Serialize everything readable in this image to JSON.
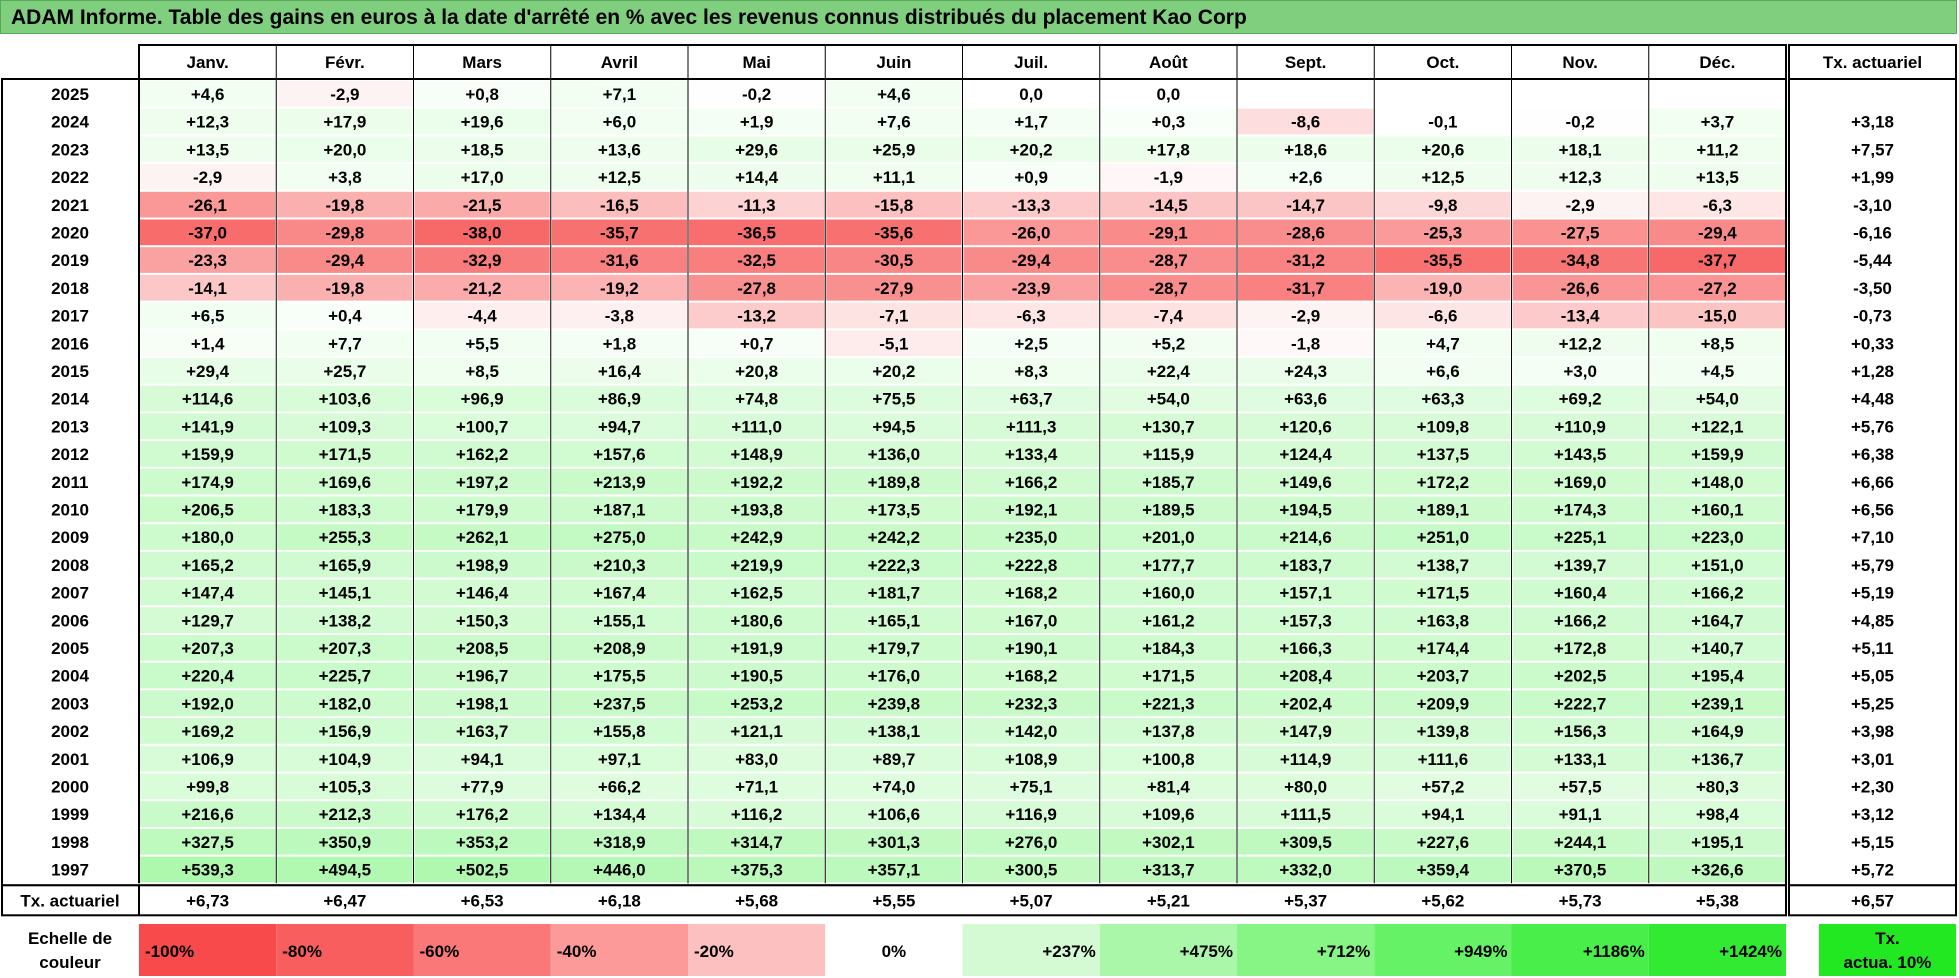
{
  "title": "ADAM Informe. Table des gains en euros à la date d'arrêté en % avec les revenus connus distribués du placement Kao Corp",
  "chart_data": {
    "type": "heatmap",
    "columns": [
      "Janv.",
      "Févr.",
      "Mars",
      "Avril",
      "Mai",
      "Juin",
      "Juil.",
      "Août",
      "Sept.",
      "Oct.",
      "Nov.",
      "Déc."
    ],
    "rate_header": "Tx. actuariel",
    "rows": [
      {
        "year": "2025",
        "values": [
          "+4,6",
          "-2,9",
          "+0,8",
          "+7,1",
          "-0,2",
          "+4,6",
          "0,0",
          "0,0",
          "",
          "",
          "",
          ""
        ],
        "rate": ""
      },
      {
        "year": "2024",
        "values": [
          "+12,3",
          "+17,9",
          "+19,6",
          "+6,0",
          "+1,9",
          "+7,6",
          "+1,7",
          "+0,3",
          "-8,6",
          "-0,1",
          "-0,2",
          "+3,7"
        ],
        "rate": "+3,18"
      },
      {
        "year": "2023",
        "values": [
          "+13,5",
          "+20,0",
          "+18,5",
          "+13,6",
          "+29,6",
          "+25,9",
          "+20,2",
          "+17,8",
          "+18,6",
          "+20,6",
          "+18,1",
          "+11,2"
        ],
        "rate": "+7,57"
      },
      {
        "year": "2022",
        "values": [
          "-2,9",
          "+3,8",
          "+17,0",
          "+12,5",
          "+14,4",
          "+11,1",
          "+0,9",
          "-1,9",
          "+2,6",
          "+12,5",
          "+12,3",
          "+13,5"
        ],
        "rate": "+1,99"
      },
      {
        "year": "2021",
        "values": [
          "-26,1",
          "-19,8",
          "-21,5",
          "-16,5",
          "-11,3",
          "-15,8",
          "-13,3",
          "-14,5",
          "-14,7",
          "-9,8",
          "-2,9",
          "-6,3"
        ],
        "rate": "-3,10"
      },
      {
        "year": "2020",
        "values": [
          "-37,0",
          "-29,8",
          "-38,0",
          "-35,7",
          "-36,5",
          "-35,6",
          "-26,0",
          "-29,1",
          "-28,6",
          "-25,3",
          "-27,5",
          "-29,4"
        ],
        "rate": "-6,16"
      },
      {
        "year": "2019",
        "values": [
          "-23,3",
          "-29,4",
          "-32,9",
          "-31,6",
          "-32,5",
          "-30,5",
          "-29,4",
          "-28,7",
          "-31,2",
          "-35,5",
          "-34,8",
          "-37,7"
        ],
        "rate": "-5,44"
      },
      {
        "year": "2018",
        "values": [
          "-14,1",
          "-19,8",
          "-21,2",
          "-19,2",
          "-27,8",
          "-27,9",
          "-23,9",
          "-28,7",
          "-31,7",
          "-19,0",
          "-26,6",
          "-27,2"
        ],
        "rate": "-3,50"
      },
      {
        "year": "2017",
        "values": [
          "+6,5",
          "+0,4",
          "-4,4",
          "-3,8",
          "-13,2",
          "-7,1",
          "-6,3",
          "-7,4",
          "-2,9",
          "-6,6",
          "-13,4",
          "-15,0"
        ],
        "rate": "-0,73"
      },
      {
        "year": "2016",
        "values": [
          "+1,4",
          "+7,7",
          "+5,5",
          "+1,8",
          "+0,7",
          "-5,1",
          "+2,5",
          "+5,2",
          "-1,8",
          "+4,7",
          "+12,2",
          "+8,5"
        ],
        "rate": "+0,33"
      },
      {
        "year": "2015",
        "values": [
          "+29,4",
          "+25,7",
          "+8,5",
          "+16,4",
          "+20,8",
          "+20,2",
          "+8,3",
          "+22,4",
          "+24,3",
          "+6,6",
          "+3,0",
          "+4,5"
        ],
        "rate": "+1,28"
      },
      {
        "year": "2014",
        "values": [
          "+114,6",
          "+103,6",
          "+96,9",
          "+86,9",
          "+74,8",
          "+75,5",
          "+63,7",
          "+54,0",
          "+63,6",
          "+63,3",
          "+69,2",
          "+54,0"
        ],
        "rate": "+4,48"
      },
      {
        "year": "2013",
        "values": [
          "+141,9",
          "+109,3",
          "+100,7",
          "+94,7",
          "+111,0",
          "+94,5",
          "+111,3",
          "+130,7",
          "+120,6",
          "+109,8",
          "+110,9",
          "+122,1"
        ],
        "rate": "+5,76"
      },
      {
        "year": "2012",
        "values": [
          "+159,9",
          "+171,5",
          "+162,2",
          "+157,6",
          "+148,9",
          "+136,0",
          "+133,4",
          "+115,9",
          "+124,4",
          "+137,5",
          "+143,5",
          "+159,9"
        ],
        "rate": "+6,38"
      },
      {
        "year": "2011",
        "values": [
          "+174,9",
          "+169,6",
          "+197,2",
          "+213,9",
          "+192,2",
          "+189,8",
          "+166,2",
          "+185,7",
          "+149,6",
          "+172,2",
          "+169,0",
          "+148,0"
        ],
        "rate": "+6,66"
      },
      {
        "year": "2010",
        "values": [
          "+206,5",
          "+183,3",
          "+179,9",
          "+187,1",
          "+193,8",
          "+173,5",
          "+192,1",
          "+189,5",
          "+194,5",
          "+189,1",
          "+174,3",
          "+160,1"
        ],
        "rate": "+6,56"
      },
      {
        "year": "2009",
        "values": [
          "+180,0",
          "+255,3",
          "+262,1",
          "+275,0",
          "+242,9",
          "+242,2",
          "+235,0",
          "+201,0",
          "+214,6",
          "+251,0",
          "+225,1",
          "+223,0"
        ],
        "rate": "+7,10"
      },
      {
        "year": "2008",
        "values": [
          "+165,2",
          "+165,9",
          "+198,9",
          "+210,3",
          "+219,9",
          "+222,3",
          "+222,8",
          "+177,7",
          "+183,7",
          "+138,7",
          "+139,7",
          "+151,0"
        ],
        "rate": "+5,79"
      },
      {
        "year": "2007",
        "values": [
          "+147,4",
          "+145,1",
          "+146,4",
          "+167,4",
          "+162,5",
          "+181,7",
          "+168,2",
          "+160,0",
          "+157,1",
          "+171,5",
          "+160,4",
          "+166,2"
        ],
        "rate": "+5,19"
      },
      {
        "year": "2006",
        "values": [
          "+129,7",
          "+138,2",
          "+150,3",
          "+155,1",
          "+180,6",
          "+165,1",
          "+167,0",
          "+161,2",
          "+157,3",
          "+163,8",
          "+166,2",
          "+164,7"
        ],
        "rate": "+4,85"
      },
      {
        "year": "2005",
        "values": [
          "+207,3",
          "+207,3",
          "+208,5",
          "+208,9",
          "+191,9",
          "+179,7",
          "+190,1",
          "+184,3",
          "+166,3",
          "+174,4",
          "+172,8",
          "+140,7"
        ],
        "rate": "+5,11"
      },
      {
        "year": "2004",
        "values": [
          "+220,4",
          "+225,7",
          "+196,7",
          "+175,5",
          "+190,5",
          "+176,0",
          "+168,2",
          "+171,5",
          "+208,4",
          "+203,7",
          "+202,5",
          "+195,4"
        ],
        "rate": "+5,05"
      },
      {
        "year": "2003",
        "values": [
          "+192,0",
          "+182,0",
          "+198,1",
          "+237,5",
          "+253,2",
          "+239,8",
          "+232,3",
          "+221,3",
          "+202,4",
          "+209,9",
          "+222,7",
          "+239,1"
        ],
        "rate": "+5,25"
      },
      {
        "year": "2002",
        "values": [
          "+169,2",
          "+156,9",
          "+163,7",
          "+155,8",
          "+121,1",
          "+138,1",
          "+142,0",
          "+137,8",
          "+147,9",
          "+139,8",
          "+156,3",
          "+164,9"
        ],
        "rate": "+3,98"
      },
      {
        "year": "2001",
        "values": [
          "+106,9",
          "+104,9",
          "+94,1",
          "+97,1",
          "+83,0",
          "+89,7",
          "+108,9",
          "+100,8",
          "+114,9",
          "+111,6",
          "+133,1",
          "+136,7"
        ],
        "rate": "+3,01"
      },
      {
        "year": "2000",
        "values": [
          "+99,8",
          "+105,3",
          "+77,9",
          "+66,2",
          "+71,1",
          "+74,0",
          "+75,1",
          "+81,4",
          "+80,0",
          "+57,2",
          "+57,5",
          "+80,3"
        ],
        "rate": "+2,30"
      },
      {
        "year": "1999",
        "values": [
          "+216,6",
          "+212,3",
          "+176,2",
          "+134,4",
          "+116,2",
          "+106,6",
          "+116,9",
          "+109,6",
          "+111,5",
          "+94,1",
          "+91,1",
          "+98,4"
        ],
        "rate": "+3,12"
      },
      {
        "year": "1998",
        "values": [
          "+327,5",
          "+350,9",
          "+353,2",
          "+318,9",
          "+314,7",
          "+301,3",
          "+276,0",
          "+302,1",
          "+309,5",
          "+227,6",
          "+244,1",
          "+195,1"
        ],
        "rate": "+5,15"
      },
      {
        "year": "1997",
        "values": [
          "+539,3",
          "+494,5",
          "+502,5",
          "+446,0",
          "+375,3",
          "+357,1",
          "+300,5",
          "+313,7",
          "+332,0",
          "+359,4",
          "+370,5",
          "+326,6"
        ],
        "rate": "+5,72"
      }
    ],
    "footer": {
      "label": "Tx. actuariel",
      "values": [
        "+6,73",
        "+6,47",
        "+6,53",
        "+6,18",
        "+5,68",
        "+5,55",
        "+5,07",
        "+5,21",
        "+5,37",
        "+5,62",
        "+5,73",
        "+5,38"
      ],
      "rate": "+6,57"
    },
    "scale": {
      "label_line1": "Echelle de",
      "label_line2": "couleur",
      "steps": [
        {
          "label": "-100%",
          "color": "#f84a4a"
        },
        {
          "label": "-80%",
          "color": "#f95e5e"
        },
        {
          "label": "-60%",
          "color": "#fa7878"
        },
        {
          "label": "-40%",
          "color": "#fc9a9a"
        },
        {
          "label": "-20%",
          "color": "#fdc0c0"
        },
        {
          "label": "0%",
          "color": "#ffffff"
        },
        {
          "label": "+237%",
          "color": "#d4fad4"
        },
        {
          "label": "+475%",
          "color": "#aaf7aa"
        },
        {
          "label": "+712%",
          "color": "#86f586"
        },
        {
          "label": "+949%",
          "color": "#66f266"
        },
        {
          "label": "+1186%",
          "color": "#4aee4a"
        },
        {
          "label": "+1424%",
          "color": "#33ea33"
        }
      ],
      "rate_line1": "Tx.",
      "rate_line2": "actua. 10%",
      "rate_color": "#22e822"
    }
  }
}
